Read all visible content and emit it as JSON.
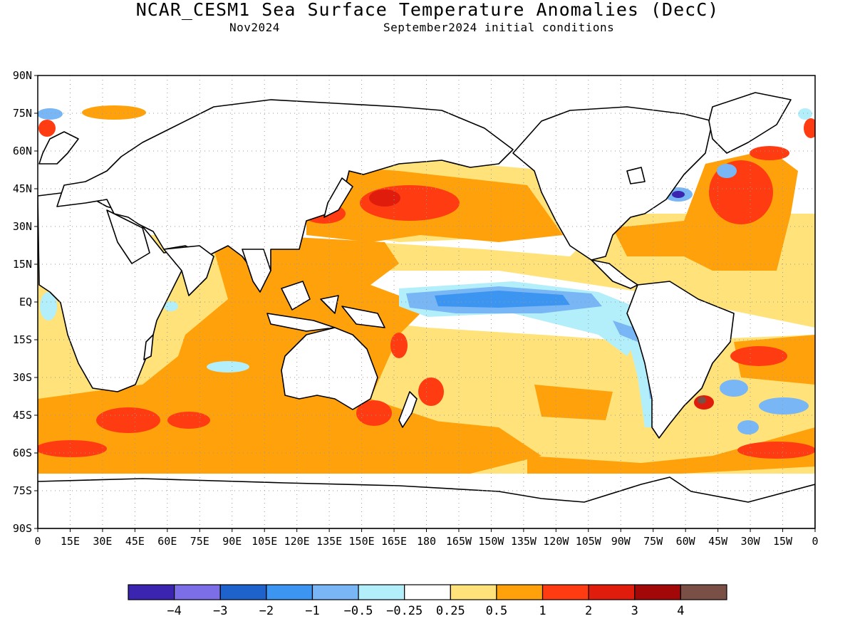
{
  "title": "NCAR_CESM1 Sea Surface Temperature Anomalies (DecC)",
  "subtitle_left": "Nov2024",
  "subtitle_right": "September2024 initial conditions",
  "lat_labels": [
    "90N",
    "75N",
    "60N",
    "45N",
    "30N",
    "15N",
    "EQ",
    "15S",
    "30S",
    "45S",
    "60S",
    "75S",
    "90S"
  ],
  "lon_labels": [
    "0",
    "15E",
    "30E",
    "45E",
    "60E",
    "75E",
    "90E",
    "105E",
    "120E",
    "135E",
    "150E",
    "165E",
    "180",
    "165W",
    "150W",
    "135W",
    "120W",
    "105W",
    "90W",
    "75W",
    "60W",
    "45W",
    "30W",
    "15W",
    "0"
  ],
  "colorbar": {
    "colors": [
      "#3b24b0",
      "#7b6ee6",
      "#1e63cc",
      "#3c95f0",
      "#78b6f5",
      "#b3effa",
      "#ffffff",
      "#ffe37a",
      "#ffa10a",
      "#ff3b12",
      "#e01c0c",
      "#a30808",
      "#7a5046"
    ],
    "labels": [
      "−4",
      "−3",
      "−2",
      "−1",
      "−0.5",
      "−0.25",
      "0.25",
      "0.5",
      "1",
      "2",
      "3",
      "4"
    ]
  },
  "regions": [
    {
      "name": "nino-cold-tongue",
      "color": "#78b6f5",
      "center": [
        205,
        -3
      ],
      "radius": [
        35,
        3.5
      ]
    },
    {
      "name": "kuroshio-warm",
      "color": "#e01c0c",
      "center": [
        162,
        40
      ],
      "radius": [
        10,
        3
      ]
    },
    {
      "name": "gulf-stream-cold",
      "color": "#3c95f0",
      "center": [
        292,
        41
      ],
      "radius": [
        3,
        1.5
      ]
    },
    {
      "name": "brazil-malvinas-warm",
      "color": "#a30808",
      "center": [
        310,
        -38
      ],
      "radius": [
        2,
        1.5
      ]
    }
  ]
}
